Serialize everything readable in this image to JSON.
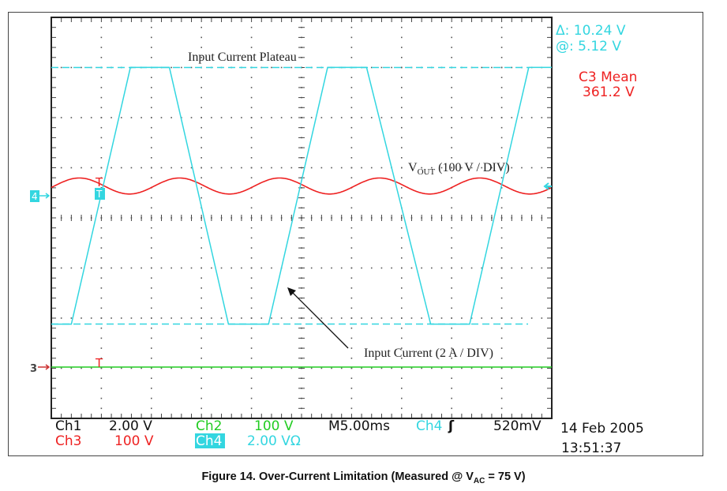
{
  "measurements": {
    "delta": "Δ: 10.24 V",
    "at": "@: 5.12 V",
    "mean_label": "C3 Mean",
    "mean_value": "361.2 V"
  },
  "annotations": {
    "plateau": "Input Current Plateau",
    "vout_main": "V",
    "vout_sub": "OUT",
    "vout_rest": " (100 V / DIV)",
    "current": "Input Current (2 A / DIV)"
  },
  "markers": {
    "ch4": "4",
    "ch3": "3",
    "trigger": "T"
  },
  "readout": {
    "ch1_label": "Ch1",
    "ch1_scale": "2.00 V",
    "ch2_label": "Ch2",
    "ch2_scale": "100 V",
    "timebase": "M5.00ms",
    "trig_source": "Ch4",
    "trig_slope": "ʃ",
    "trig_level": "520mV",
    "ch3_label": "Ch3",
    "ch3_scale": "100 V",
    "ch4_label": "Ch4",
    "ch4_scale": "2.00 VΩ",
    "date": "14 Feb 2005",
    "time": "13:51:37"
  },
  "caption": {
    "pre": "Figure 14. Over-Current Limitation (Measured @ V",
    "sub": "AC",
    "post": " = 75 V)"
  },
  "colors": {
    "ch1": "#000000",
    "ch2": "#22cc22",
    "ch3": "#ee2222",
    "ch4": "#33d6e0"
  },
  "chart_data": {
    "type": "line",
    "xlabel": "",
    "ylabel": "",
    "x_unit": "ms",
    "xlim": [
      0,
      50
    ],
    "grid": true,
    "divisions": {
      "x": 10,
      "y": 8
    },
    "series": [
      {
        "channel": "Ch4",
        "unit": "V",
        "scale_per_div": 2.0,
        "points": [
          [
            0,
            -5.12
          ],
          [
            2.0,
            -5.12
          ],
          [
            7.9,
            5.12
          ],
          [
            11.8,
            5.12
          ],
          [
            17.7,
            -5.12
          ],
          [
            21.7,
            -5.12
          ],
          [
            27.6,
            5.12
          ],
          [
            31.5,
            5.12
          ],
          [
            37.9,
            -5.12
          ],
          [
            41.8,
            -5.12
          ],
          [
            47.7,
            5.12
          ],
          [
            50,
            5.12
          ]
        ]
      },
      {
        "channel": "Ch3",
        "unit": "V",
        "scale_per_div": 100,
        "mean": 361.2,
        "ripple_amplitude": 16,
        "ripple_period_ms": 10,
        "ripple_peak_ms": 2.8
      },
      {
        "channel": "Ch2",
        "unit": "V",
        "scale_per_div": 100,
        "value": 0
      }
    ],
    "cursors": {
      "unit": "V",
      "values": [
        5.12,
        -5.12
      ]
    }
  }
}
